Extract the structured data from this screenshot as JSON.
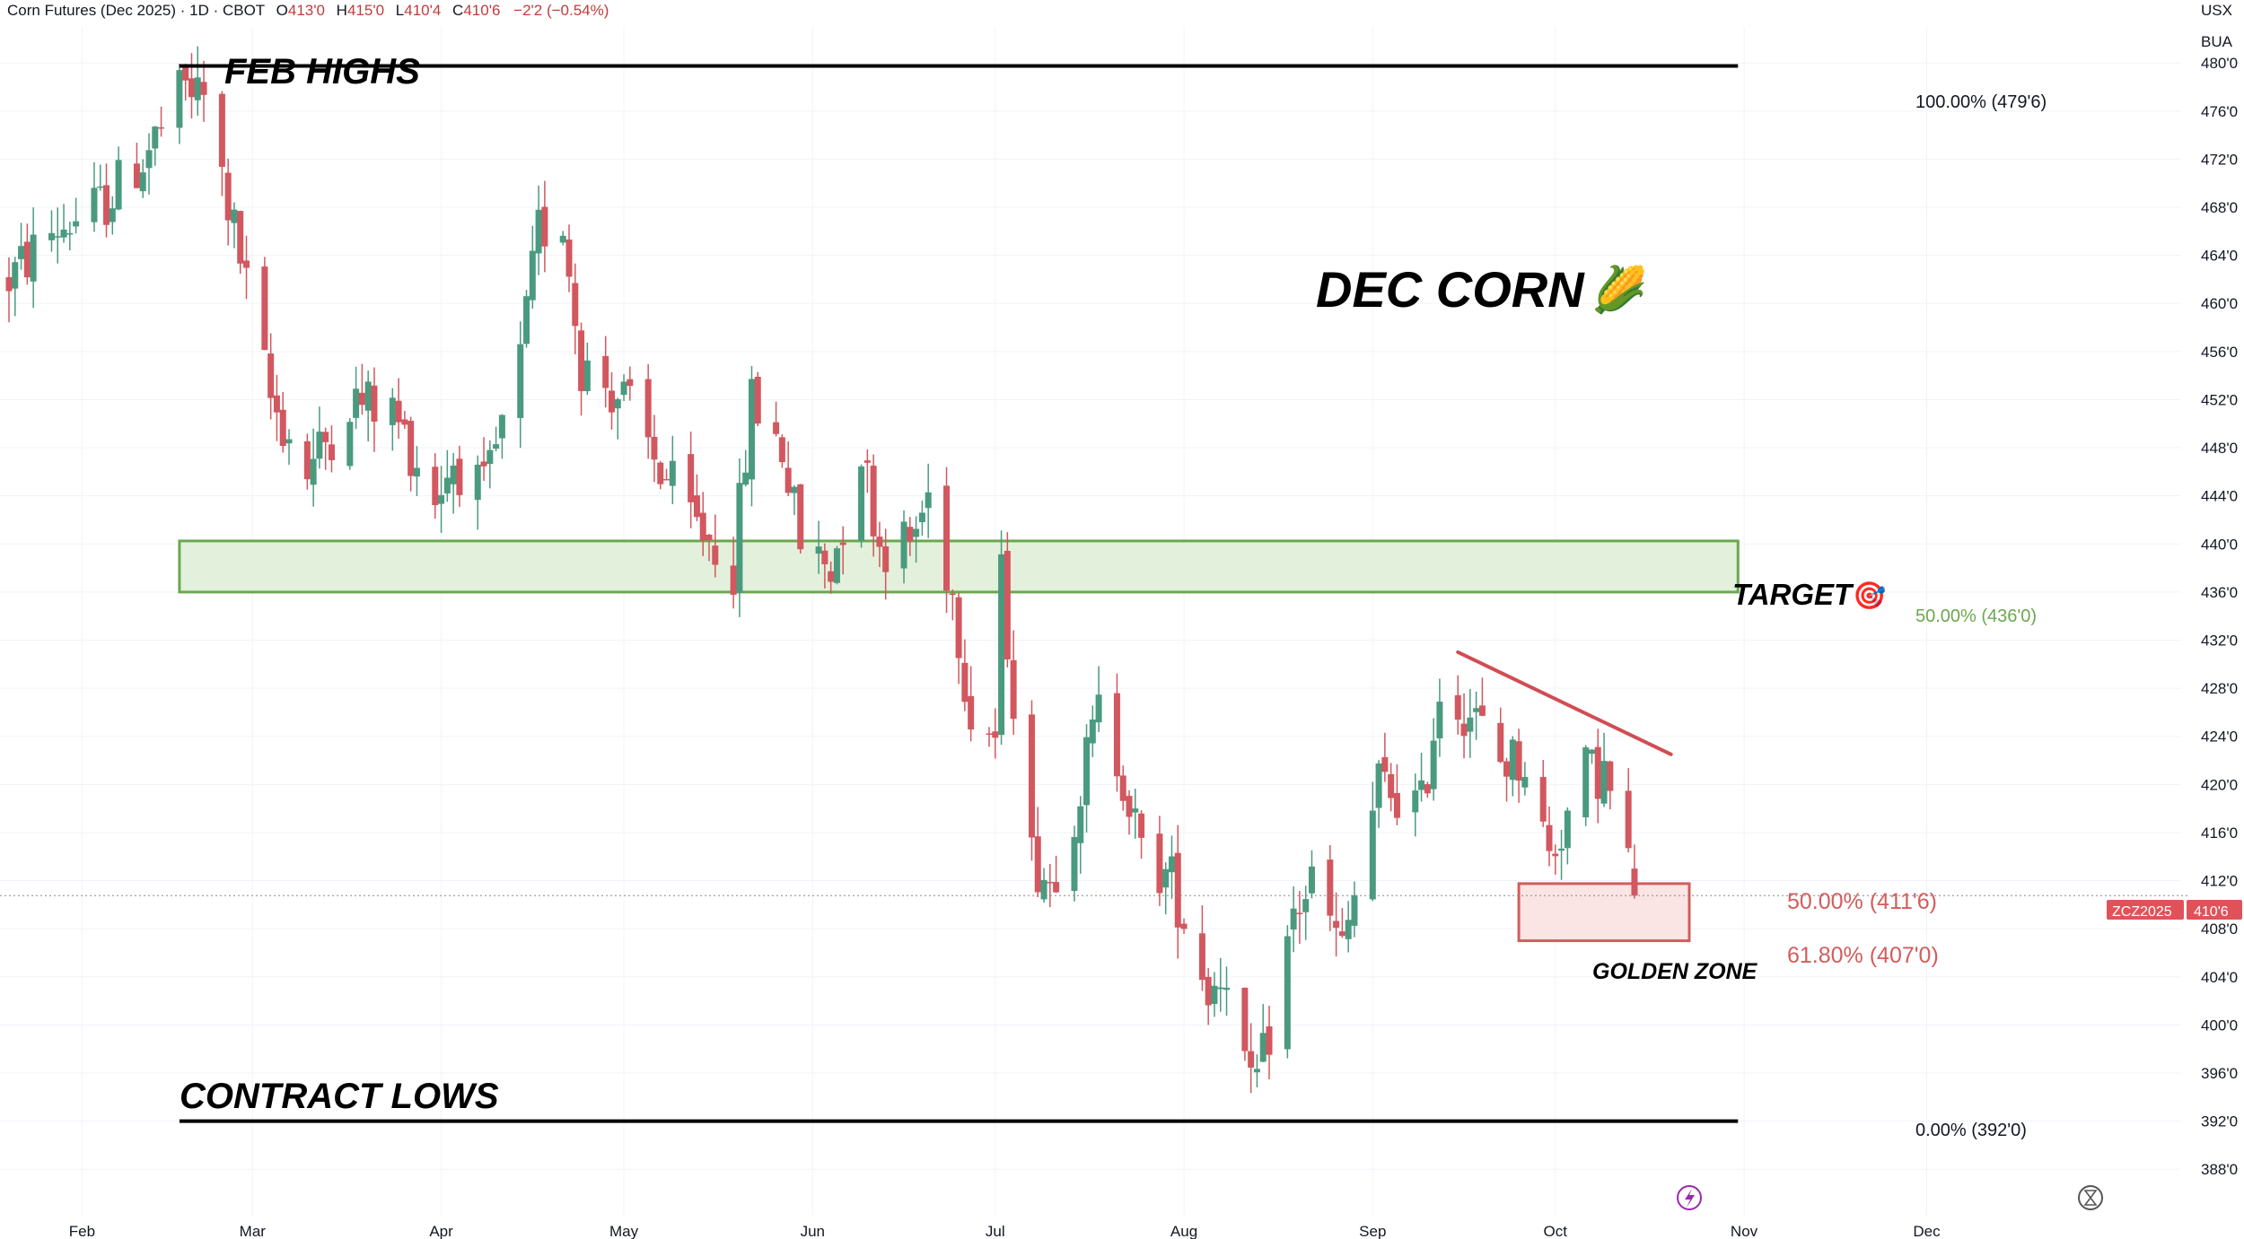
{
  "header": {
    "symbol": "Corn Futures (Dec 2025) · 1D · CBOT",
    "o_label": "O",
    "o_value": "413'0",
    "h_label": "H",
    "h_value": "415'0",
    "l_label": "L",
    "l_value": "410'4",
    "c_label": "C",
    "c_value": "410'6",
    "change": "−2'2 (−0.54%)",
    "currency": "USX",
    "unit": "BUA"
  },
  "colors": {
    "up": "#4a9a7f",
    "down": "#d2575f",
    "target_fill": "#e3f1dc",
    "target_stroke": "#6aa84f",
    "golden_fill": "#fbe4e4",
    "golden_stroke": "#d45c5c",
    "trendline": "#d24c54",
    "price_tag": "#e0525a"
  },
  "annotations": {
    "feb_highs": "FEB HIGHS",
    "dec_corn": "DEC CORN",
    "corn_emoji": "🌽",
    "target": "TARGET",
    "target_emoji": "🎯",
    "golden_zone": "GOLDEN ZONE",
    "contract_lows": "CONTRACT LOWS"
  },
  "fib_labels": {
    "high": "100.00% (479'6)",
    "target": "50.00% (436'0)",
    "golden_top": "50.00% (411'6)",
    "golden_bottom": "61.80% (407'0)",
    "low": "0.00% (392'0)"
  },
  "price_tag": {
    "symbol": "ZCZ2025",
    "price": "410'6"
  },
  "chart_data": {
    "type": "candlestick",
    "title": "Corn Futures (Dec 2025) · 1D · CBOT",
    "y_unit": "USX",
    "y_ticks": [
      {
        "value": 480,
        "label": "480'0"
      },
      {
        "value": 476,
        "label": "476'0"
      },
      {
        "value": 472,
        "label": "472'0"
      },
      {
        "value": 468,
        "label": "468'0"
      },
      {
        "value": 464,
        "label": "464'0"
      },
      {
        "value": 460,
        "label": "460'0"
      },
      {
        "value": 456,
        "label": "456'0"
      },
      {
        "value": 452,
        "label": "452'0"
      },
      {
        "value": 448,
        "label": "448'0"
      },
      {
        "value": 444,
        "label": "444'0"
      },
      {
        "value": 440,
        "label": "440'0"
      },
      {
        "value": 436,
        "label": "436'0"
      },
      {
        "value": 432,
        "label": "432'0"
      },
      {
        "value": 428,
        "label": "428'0"
      },
      {
        "value": 424,
        "label": "424'0"
      },
      {
        "value": 420,
        "label": "420'0"
      },
      {
        "value": 416,
        "label": "416'0"
      },
      {
        "value": 412,
        "label": "412'0"
      },
      {
        "value": 408,
        "label": "408'0"
      },
      {
        "value": 404,
        "label": "404'0"
      },
      {
        "value": 400,
        "label": "400'0"
      },
      {
        "value": 396,
        "label": "396'0"
      },
      {
        "value": 392,
        "label": "392'0"
      },
      {
        "value": 388,
        "label": "388'0"
      }
    ],
    "x_ticks": [
      {
        "date": "2025-02-01",
        "label": "Feb"
      },
      {
        "date": "2025-03-01",
        "label": "Mar"
      },
      {
        "date": "2025-04-01",
        "label": "Apr"
      },
      {
        "date": "2025-05-01",
        "label": "May"
      },
      {
        "date": "2025-06-01",
        "label": "Jun"
      },
      {
        "date": "2025-07-01",
        "label": "Jul"
      },
      {
        "date": "2025-08-01",
        "label": "Aug"
      },
      {
        "date": "2025-09-01",
        "label": "Sep"
      },
      {
        "date": "2025-10-01",
        "label": "Oct"
      },
      {
        "date": "2025-11-01",
        "label": "Nov"
      },
      {
        "date": "2025-12-01",
        "label": "Dec"
      }
    ],
    "x_range": [
      "2025-01-20",
      "2025-12-31"
    ],
    "y_range": [
      386,
      483
    ],
    "anchors": [
      {
        "date": "2025-01-20",
        "price": 462
      },
      {
        "date": "2025-01-27",
        "price": 466
      },
      {
        "date": "2025-02-04",
        "price": 468
      },
      {
        "date": "2025-02-11",
        "price": 472
      },
      {
        "date": "2025-02-18",
        "price": 478
      },
      {
        "date": "2025-02-21",
        "price": 477
      },
      {
        "date": "2025-02-26",
        "price": 466
      },
      {
        "date": "2025-03-04",
        "price": 452
      },
      {
        "date": "2025-03-10",
        "price": 446
      },
      {
        "date": "2025-03-17",
        "price": 452
      },
      {
        "date": "2025-03-24",
        "price": 451
      },
      {
        "date": "2025-03-31",
        "price": 444
      },
      {
        "date": "2025-04-03",
        "price": 447
      },
      {
        "date": "2025-04-08",
        "price": 444
      },
      {
        "date": "2025-04-14",
        "price": 455
      },
      {
        "date": "2025-04-17",
        "price": 466
      },
      {
        "date": "2025-04-21",
        "price": 467
      },
      {
        "date": "2025-04-24",
        "price": 455
      },
      {
        "date": "2025-05-01",
        "price": 452
      },
      {
        "date": "2025-05-06",
        "price": 447
      },
      {
        "date": "2025-05-12",
        "price": 442
      },
      {
        "date": "2025-05-16",
        "price": 440
      },
      {
        "date": "2025-05-19",
        "price": 438
      },
      {
        "date": "2025-05-22",
        "price": 452
      },
      {
        "date": "2025-05-27",
        "price": 448
      },
      {
        "date": "2025-05-30",
        "price": 440
      },
      {
        "date": "2025-06-04",
        "price": 438
      },
      {
        "date": "2025-06-09",
        "price": 448
      },
      {
        "date": "2025-06-12",
        "price": 440
      },
      {
        "date": "2025-06-17",
        "price": 440
      },
      {
        "date": "2025-06-20",
        "price": 444
      },
      {
        "date": "2025-06-24",
        "price": 436
      },
      {
        "date": "2025-06-27",
        "price": 426
      },
      {
        "date": "2025-07-01",
        "price": 424
      },
      {
        "date": "2025-07-02",
        "price": 437
      },
      {
        "date": "2025-07-07",
        "price": 414
      },
      {
        "date": "2025-07-10",
        "price": 412
      },
      {
        "date": "2025-07-14",
        "price": 418
      },
      {
        "date": "2025-07-18",
        "price": 426
      },
      {
        "date": "2025-07-22",
        "price": 421
      },
      {
        "date": "2025-07-25",
        "price": 414
      },
      {
        "date": "2025-07-30",
        "price": 412
      },
      {
        "date": "2025-08-05",
        "price": 403
      },
      {
        "date": "2025-08-08",
        "price": 405
      },
      {
        "date": "2025-08-12",
        "price": 394
      },
      {
        "date": "2025-08-14",
        "price": 397
      },
      {
        "date": "2025-08-19",
        "price": 409
      },
      {
        "date": "2025-08-22",
        "price": 412
      },
      {
        "date": "2025-08-27",
        "price": 406
      },
      {
        "date": "2025-09-02",
        "price": 420
      },
      {
        "date": "2025-09-09",
        "price": 418
      },
      {
        "date": "2025-09-12",
        "price": 428
      },
      {
        "date": "2025-09-17",
        "price": 426
      },
      {
        "date": "2025-09-22",
        "price": 422
      },
      {
        "date": "2025-09-26",
        "price": 422
      },
      {
        "date": "2025-09-30",
        "price": 414
      },
      {
        "date": "2025-10-06",
        "price": 421
      },
      {
        "date": "2025-10-09",
        "price": 421
      },
      {
        "date": "2025-10-14",
        "price": 411
      }
    ],
    "last_candle": {
      "date": "2025-10-14",
      "open": 413.0,
      "high": 415.0,
      "low": 410.5,
      "close": 410.75
    },
    "horizontal_levels": [
      {
        "label": "100.00% (479'6)",
        "price": 479.75,
        "from": "2025-02-17",
        "to": "2025-10-31"
      },
      {
        "label": "0.00% (392'0)",
        "price": 392.0,
        "from": "2025-02-17",
        "to": "2025-10-31"
      }
    ],
    "zones": [
      {
        "name": "TARGET",
        "from_price": 436.0,
        "to_price": 440.25,
        "from_date": "2025-02-17",
        "to_date": "2025-10-31"
      },
      {
        "name": "GOLDEN ZONE",
        "from_price": 407.0,
        "to_price": 411.75,
        "from_date": "2025-09-25",
        "to_date": "2025-10-23"
      }
    ],
    "trendline": {
      "from": {
        "date": "2025-09-15",
        "price": 431.0
      },
      "to": {
        "date": "2025-10-20",
        "price": 422.5
      }
    },
    "last_price_line": 410.75,
    "grid": true,
    "legend": "none"
  }
}
